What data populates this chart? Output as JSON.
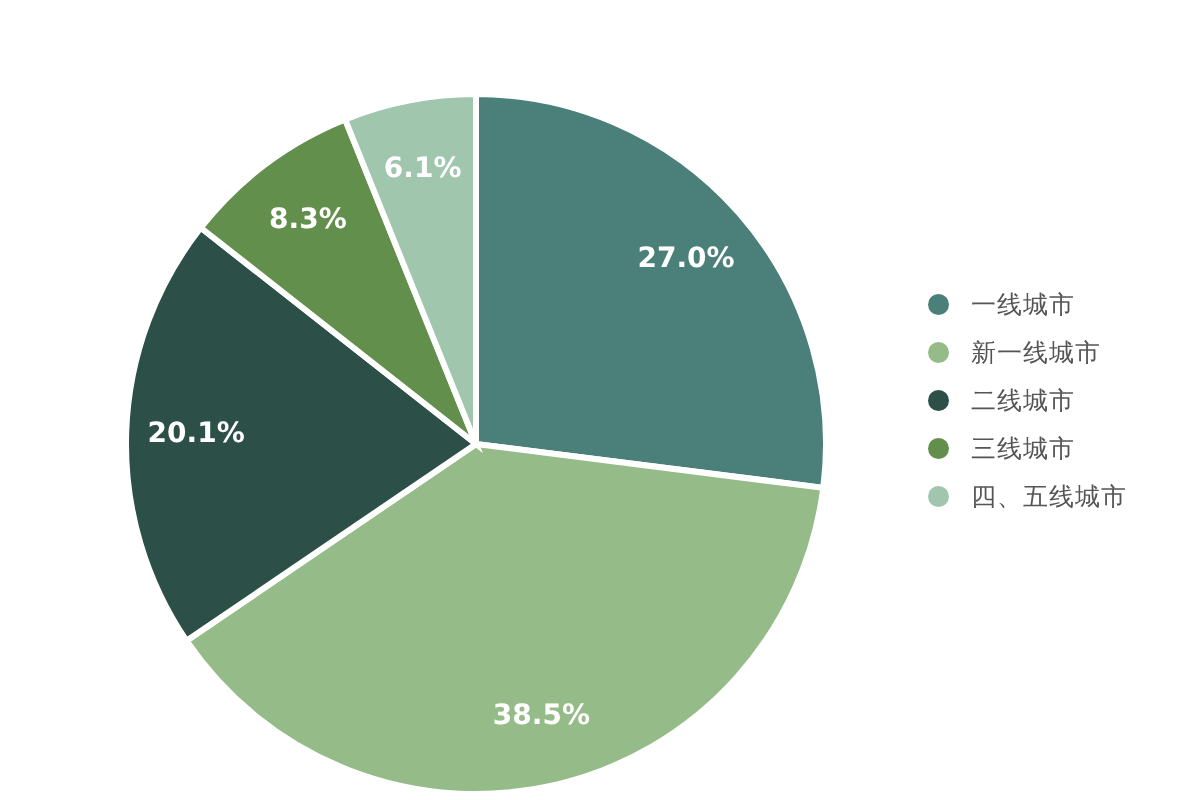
{
  "chart_data": {
    "type": "pie",
    "categories": [
      "一线城市",
      "新一线城市",
      "二线城市",
      "三线城市",
      "四、五线城市"
    ],
    "values": [
      27.0,
      38.5,
      20.1,
      8.3,
      6.1
    ],
    "colors": [
      "#4b7f79",
      "#95bc88",
      "#2c4f48",
      "#628f4c",
      "#a0c6ae"
    ],
    "value_labels": [
      "27.0%",
      "38.5%",
      "20.1%",
      "8.3%",
      "6.1%"
    ],
    "legend": "right"
  }
}
